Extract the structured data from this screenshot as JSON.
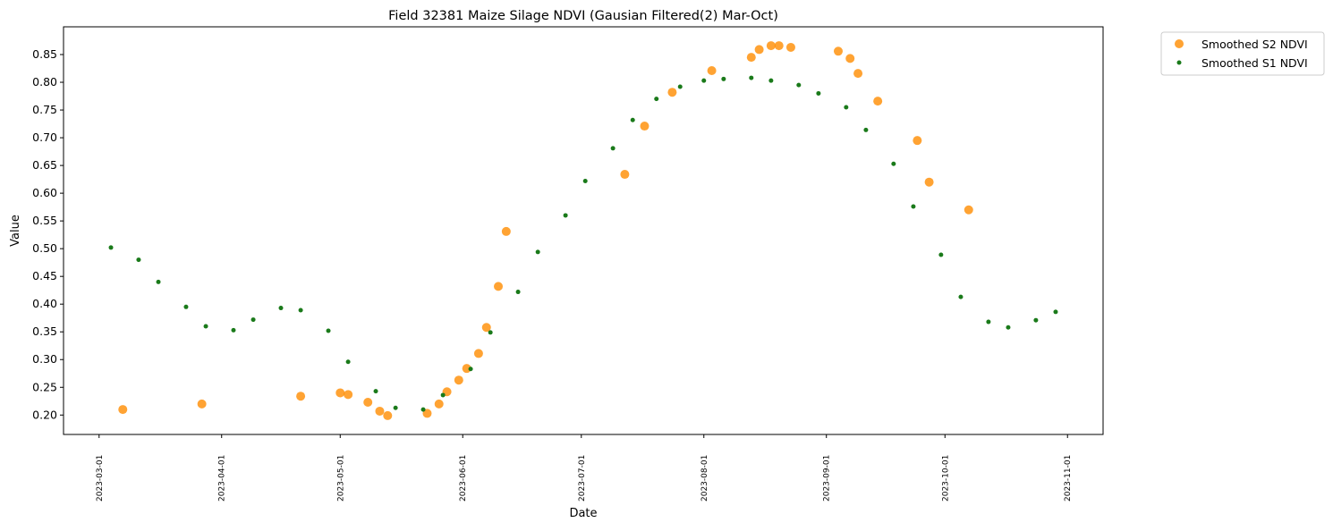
{
  "chart_data": {
    "type": "scatter",
    "title": "Field 32381 Maize Silage NDVI (Gausian Filtered(2) Mar-Oct)",
    "xlabel": "Date",
    "ylabel": "Value",
    "xlim": [
      "2023-02-20",
      "2023-11-10"
    ],
    "ylim": [
      0.165,
      0.9
    ],
    "grid": false,
    "legend_position": "outside top-right",
    "x_ticks": [
      "2023-03-01",
      "2023-04-01",
      "2023-05-01",
      "2023-06-01",
      "2023-07-01",
      "2023-08-01",
      "2023-09-01",
      "2023-10-01",
      "2023-11-01"
    ],
    "y_ticks": [
      "0.20",
      "0.25",
      "0.30",
      "0.35",
      "0.40",
      "0.45",
      "0.50",
      "0.55",
      "0.60",
      "0.65",
      "0.70",
      "0.75",
      "0.80",
      "0.85"
    ],
    "series": [
      {
        "name": "Smoothed S2 NDVI",
        "color": "#ff8c00",
        "marker": "large-circle",
        "points": [
          [
            "2023-03-07",
            0.21
          ],
          [
            "2023-03-27",
            0.22
          ],
          [
            "2023-04-21",
            0.234
          ],
          [
            "2023-05-01",
            0.24
          ],
          [
            "2023-05-03",
            0.237
          ],
          [
            "2023-05-08",
            0.223
          ],
          [
            "2023-05-11",
            0.207
          ],
          [
            "2023-05-13",
            0.199
          ],
          [
            "2023-05-23",
            0.203
          ],
          [
            "2023-05-26",
            0.22
          ],
          [
            "2023-05-28",
            0.242
          ],
          [
            "2023-05-31",
            0.263
          ],
          [
            "2023-06-02",
            0.284
          ],
          [
            "2023-06-05",
            0.311
          ],
          [
            "2023-06-07",
            0.358
          ],
          [
            "2023-06-10",
            0.432
          ],
          [
            "2023-06-12",
            0.531
          ],
          [
            "2023-07-12",
            0.634
          ],
          [
            "2023-07-17",
            0.721
          ],
          [
            "2023-07-24",
            0.782
          ],
          [
            "2023-08-03",
            0.821
          ],
          [
            "2023-08-13",
            0.845
          ],
          [
            "2023-08-15",
            0.859
          ],
          [
            "2023-08-18",
            0.866
          ],
          [
            "2023-08-20",
            0.866
          ],
          [
            "2023-08-23",
            0.863
          ],
          [
            "2023-09-04",
            0.856
          ],
          [
            "2023-09-07",
            0.843
          ],
          [
            "2023-09-09",
            0.816
          ],
          [
            "2023-09-14",
            0.766
          ],
          [
            "2023-09-24",
            0.695
          ],
          [
            "2023-09-27",
            0.62
          ],
          [
            "2023-10-07",
            0.57
          ]
        ]
      },
      {
        "name": "Smoothed S1 NDVI",
        "color": "#1a7a1a",
        "marker": "small-dot",
        "points": [
          [
            "2023-03-04",
            0.502
          ],
          [
            "2023-03-11",
            0.48
          ],
          [
            "2023-03-16",
            0.44
          ],
          [
            "2023-03-23",
            0.395
          ],
          [
            "2023-03-28",
            0.36
          ],
          [
            "2023-04-04",
            0.353
          ],
          [
            "2023-04-09",
            0.372
          ],
          [
            "2023-04-16",
            0.393
          ],
          [
            "2023-04-21",
            0.389
          ],
          [
            "2023-04-28",
            0.352
          ],
          [
            "2023-05-03",
            0.296
          ],
          [
            "2023-05-10",
            0.243
          ],
          [
            "2023-05-15",
            0.213
          ],
          [
            "2023-05-22",
            0.21
          ],
          [
            "2023-05-27",
            0.236
          ],
          [
            "2023-06-03",
            0.283
          ],
          [
            "2023-06-08",
            0.349
          ],
          [
            "2023-06-15",
            0.422
          ],
          [
            "2023-06-20",
            0.494
          ],
          [
            "2023-06-27",
            0.56
          ],
          [
            "2023-07-02",
            0.622
          ],
          [
            "2023-07-09",
            0.681
          ],
          [
            "2023-07-14",
            0.732
          ],
          [
            "2023-07-20",
            0.77
          ],
          [
            "2023-07-26",
            0.792
          ],
          [
            "2023-08-01",
            0.803
          ],
          [
            "2023-08-06",
            0.806
          ],
          [
            "2023-08-13",
            0.808
          ],
          [
            "2023-08-18",
            0.803
          ],
          [
            "2023-08-25",
            0.795
          ],
          [
            "2023-08-30",
            0.78
          ],
          [
            "2023-09-06",
            0.755
          ],
          [
            "2023-09-11",
            0.714
          ],
          [
            "2023-09-18",
            0.653
          ],
          [
            "2023-09-23",
            0.576
          ],
          [
            "2023-09-30",
            0.489
          ],
          [
            "2023-10-05",
            0.413
          ],
          [
            "2023-10-12",
            0.368
          ],
          [
            "2023-10-17",
            0.358
          ],
          [
            "2023-10-24",
            0.371
          ],
          [
            "2023-10-29",
            0.386
          ]
        ]
      }
    ]
  }
}
